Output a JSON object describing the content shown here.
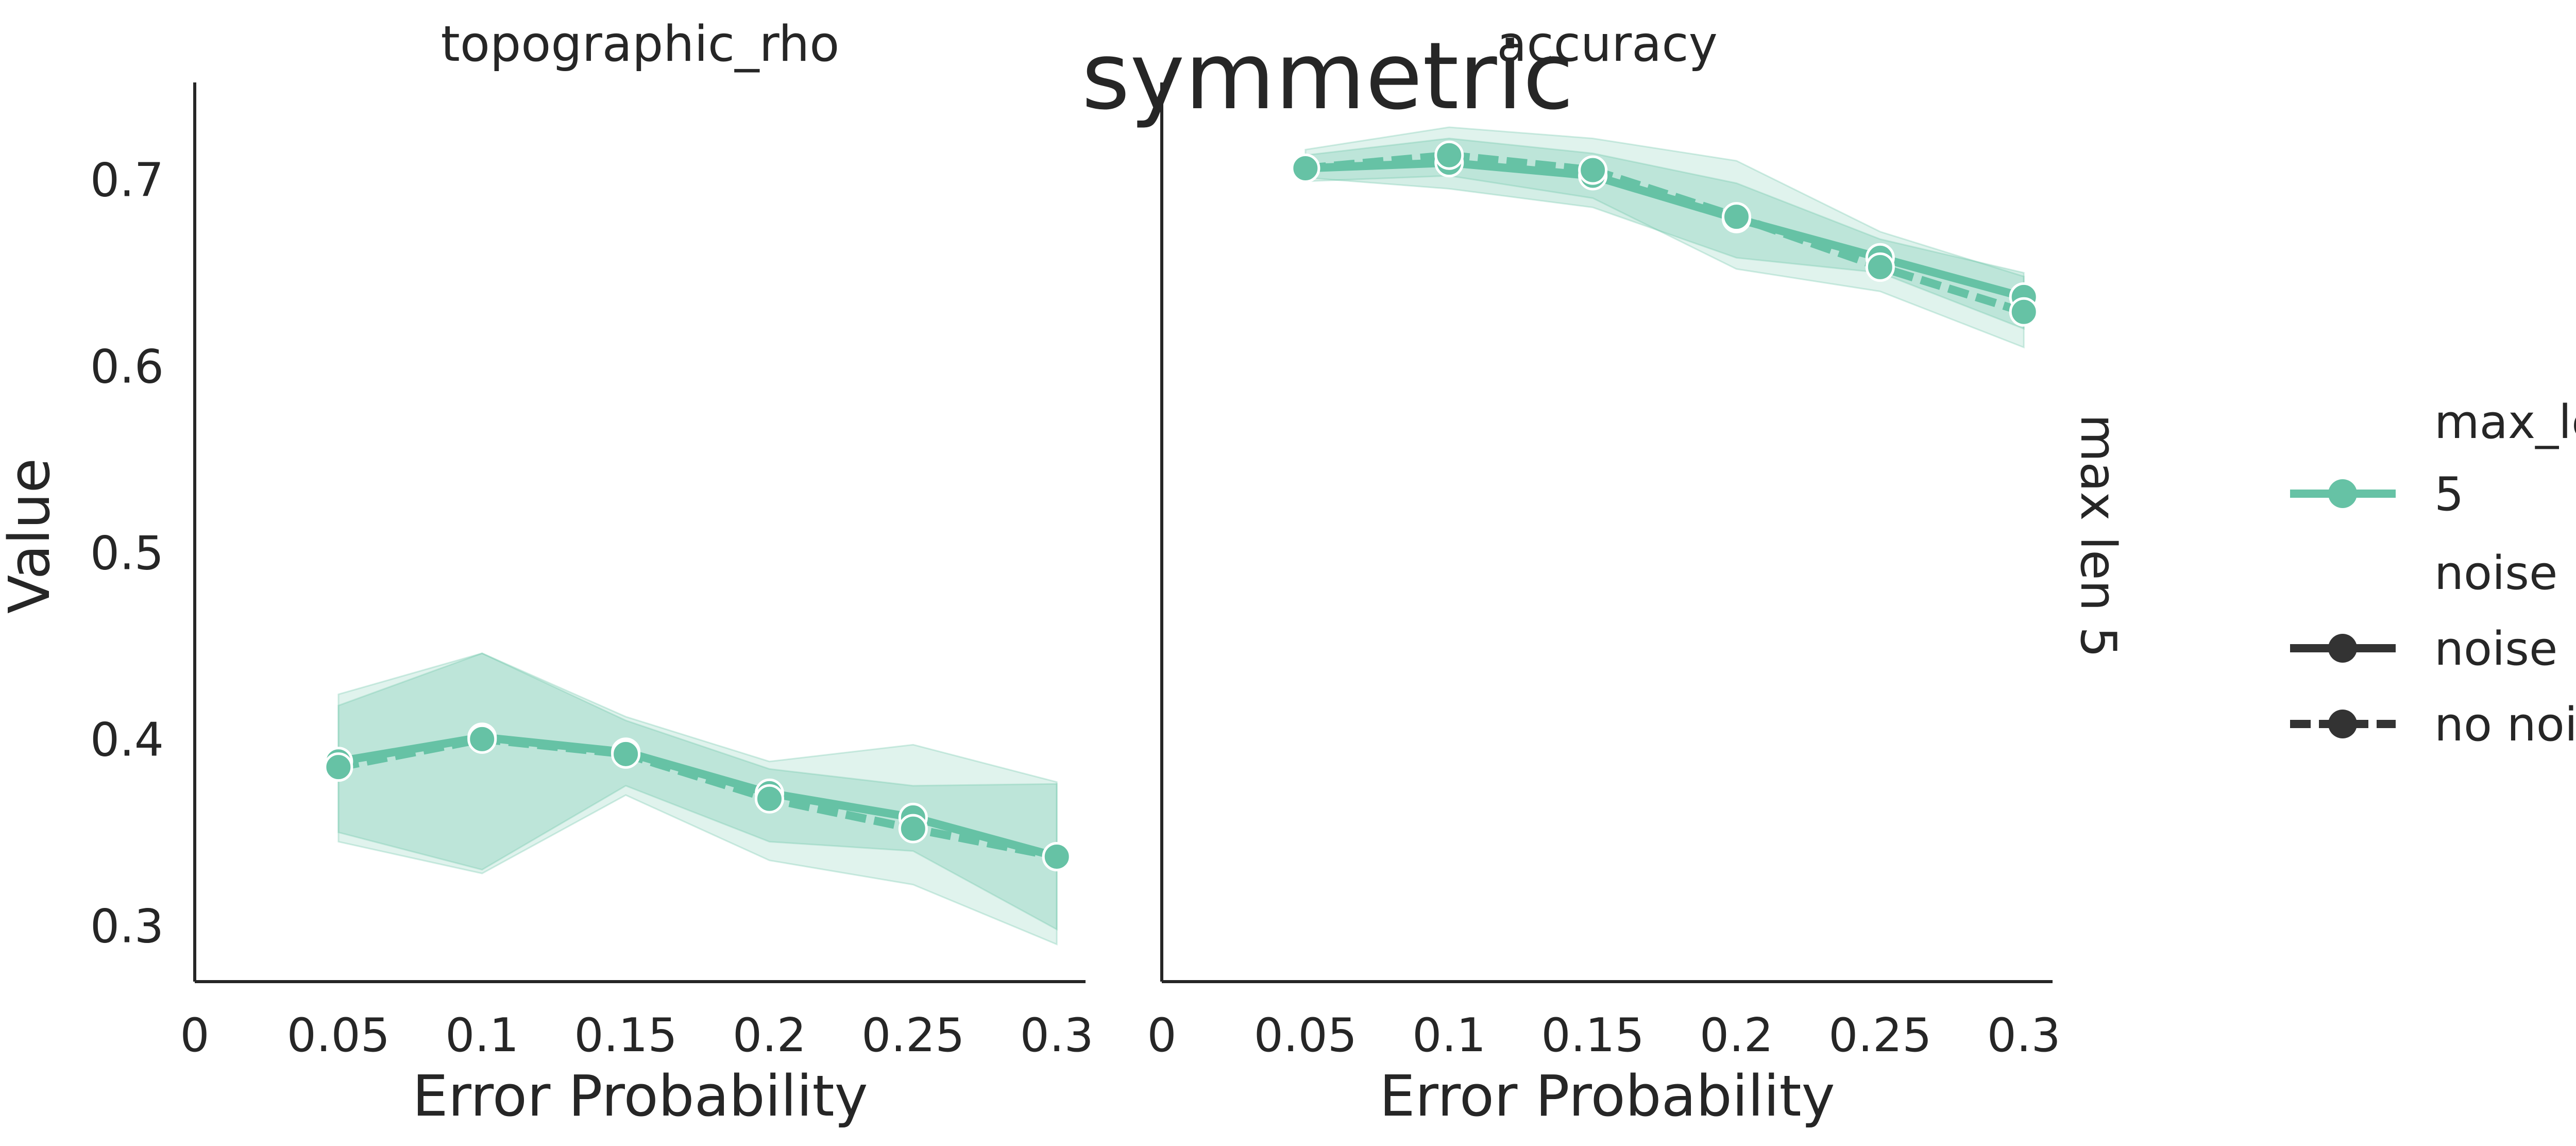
{
  "figure": {
    "suptitle": "symmetric",
    "row_label": "max len 5",
    "accent": "#66c2a5",
    "text_color": "#262626",
    "ylabel": "Value",
    "legend": {
      "hue_title": "max_len",
      "hue_entries": [
        "5"
      ],
      "style_title": "noise",
      "style_entries": [
        "noise",
        "no noise"
      ],
      "placement": "right"
    }
  },
  "chart_data": [
    {
      "type": "line",
      "title": "topographic_rho",
      "xlabel": "Error Probability",
      "ylabel": "Value",
      "x": [
        0.05,
        0.1,
        0.15,
        0.2,
        0.25,
        0.3
      ],
      "xticks": [
        "0",
        "0.05",
        "0.1",
        "0.15",
        "0.2",
        "0.25",
        "0.3"
      ],
      "yticks": [
        "0.3",
        "0.4",
        "0.5",
        "0.6",
        "0.7"
      ],
      "xlim": [
        0,
        0.31
      ],
      "ylim": [
        0.27,
        0.752
      ],
      "grid": false,
      "series": [
        {
          "name": "noise",
          "values": [
            0.388,
            0.401,
            0.393,
            0.371,
            0.358,
            0.337
          ],
          "ci_low": [
            0.35,
            0.33,
            0.375,
            0.345,
            0.34,
            0.298
          ],
          "ci_high": [
            0.418,
            0.446,
            0.41,
            0.384,
            0.375,
            0.376
          ]
        },
        {
          "name": "no noise",
          "values": [
            0.385,
            0.4,
            0.392,
            0.368,
            0.352,
            0.337
          ],
          "ci_low": [
            0.345,
            0.328,
            0.37,
            0.335,
            0.322,
            0.29
          ],
          "ci_high": [
            0.424,
            0.446,
            0.412,
            0.388,
            0.397,
            0.377
          ]
        }
      ]
    },
    {
      "type": "line",
      "title": "accuracy",
      "xlabel": "Error Probability",
      "ylabel": "",
      "x": [
        0.05,
        0.1,
        0.15,
        0.2,
        0.25,
        0.3
      ],
      "xticks": [
        "0",
        "0.05",
        "0.1",
        "0.15",
        "0.2",
        "0.25",
        "0.3"
      ],
      "yticks": [],
      "xlim": [
        0,
        0.31
      ],
      "ylim": [
        0.27,
        0.752
      ],
      "grid": false,
      "series": [
        {
          "name": "noise",
          "values": [
            0.706,
            0.709,
            0.702,
            0.679,
            0.658,
            0.637
          ],
          "ci_low": [
            0.701,
            0.695,
            0.685,
            0.658,
            0.65,
            0.62
          ],
          "ci_high": [
            0.713,
            0.722,
            0.714,
            0.698,
            0.668,
            0.65
          ]
        },
        {
          "name": "no noise",
          "values": [
            0.706,
            0.713,
            0.705,
            0.68,
            0.653,
            0.629
          ],
          "ci_low": [
            0.699,
            0.702,
            0.69,
            0.652,
            0.64,
            0.61
          ],
          "ci_high": [
            0.716,
            0.728,
            0.722,
            0.71,
            0.672,
            0.648
          ]
        }
      ]
    }
  ]
}
